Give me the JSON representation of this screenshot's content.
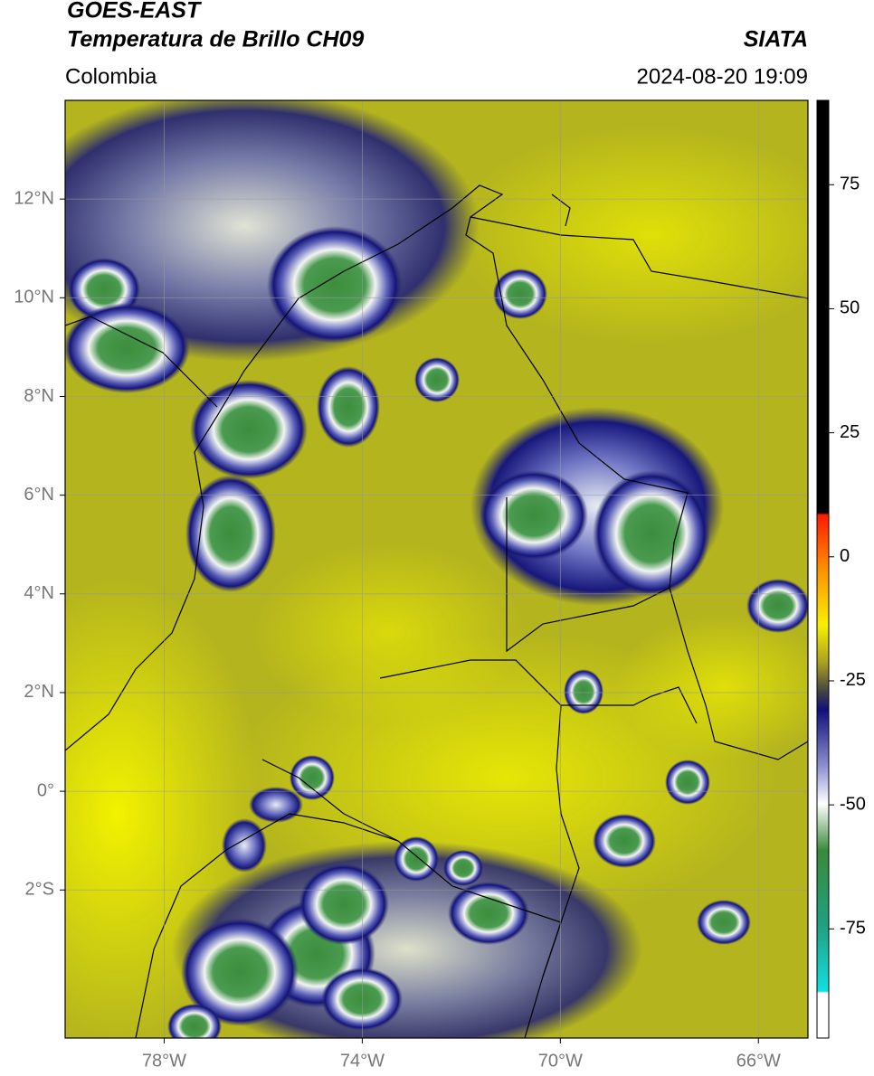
{
  "header": {
    "title": "GOES-EAST",
    "subtitle": "Temperatura de Brillo CH09",
    "source": "SIATA",
    "region": "Colombia",
    "datetime": "2024-08-20 19:09"
  },
  "map": {
    "xlim": [
      -80,
      -65
    ],
    "ylim": [
      -5,
      14
    ],
    "xticks": [
      {
        "value": -78,
        "label": "78°W"
      },
      {
        "value": -74,
        "label": "74°W"
      },
      {
        "value": -70,
        "label": "70°W"
      },
      {
        "value": -66,
        "label": "66°W"
      }
    ],
    "yticks": [
      {
        "value": 12,
        "label": "12°N"
      },
      {
        "value": 10,
        "label": "10°N"
      },
      {
        "value": 8,
        "label": "8°N"
      },
      {
        "value": 6,
        "label": "6°N"
      },
      {
        "value": 4,
        "label": "4°N"
      },
      {
        "value": 2,
        "label": "2°N"
      },
      {
        "value": 0,
        "label": "0°"
      },
      {
        "value": -2,
        "label": "2°S"
      }
    ],
    "grid": true
  },
  "colorbar": {
    "lim": [
      -97,
      92
    ],
    "ticks": [
      75,
      50,
      25,
      0,
      -25,
      -50,
      -75
    ]
  }
}
